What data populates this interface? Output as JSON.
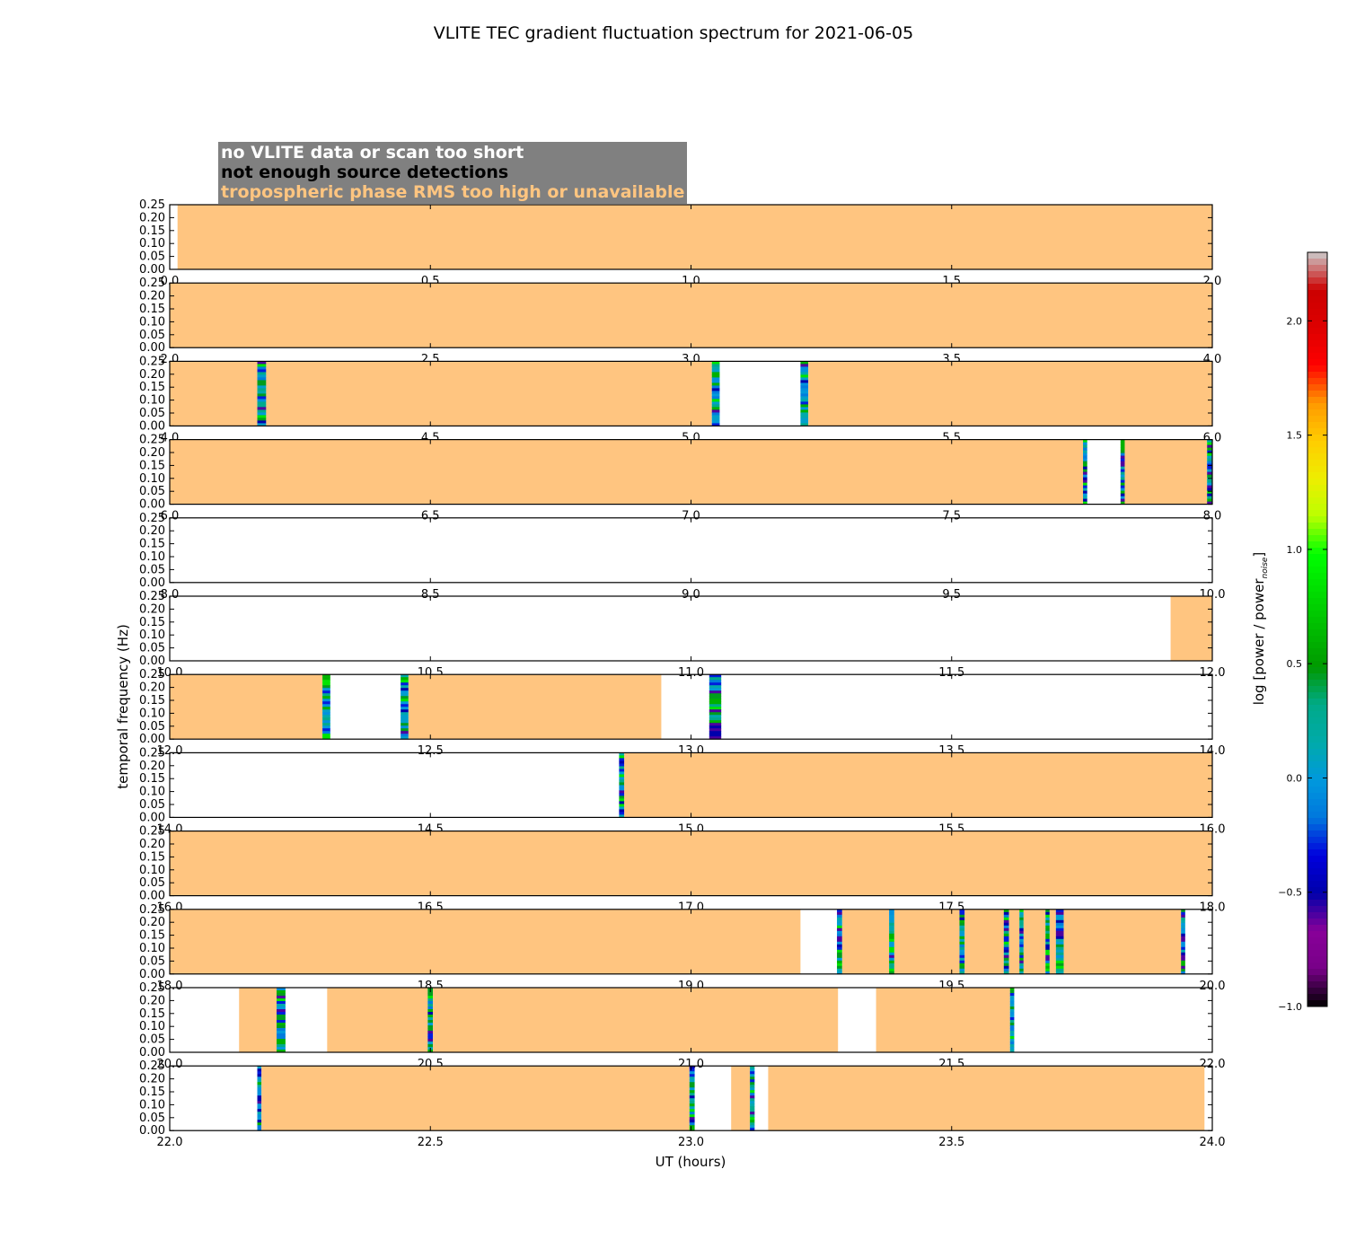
{
  "chart_data": {
    "type": "heatmap",
    "title": "VLITE TEC gradient fluctuation spectrum for 2021-06-05",
    "xlabel": "UT (hours)",
    "ylabel": "temporal frequency (Hz)",
    "colorbar": {
      "label": "log [power / power",
      "label_sub": "noise",
      "label_end": "]",
      "range": [
        -1.0,
        2.3
      ],
      "ticks": [
        "−1.0",
        "−0.5",
        "0.0",
        "0.5",
        "1.0",
        "1.5",
        "2.0"
      ],
      "tick_values": [
        -1.0,
        -0.5,
        0.0,
        0.5,
        1.0,
        1.5,
        2.0
      ],
      "colormap": "nipy_spectral"
    },
    "legend": [
      {
        "label": "no VLITE data or scan too short",
        "color": "#ffffff"
      },
      {
        "label": "not enough source detections",
        "color": "#000000"
      },
      {
        "label": "tropospheric phase RMS too high or unavailable",
        "color": "#ffc580"
      }
    ],
    "y_ticks": [
      "0.00",
      "0.05",
      "0.10",
      "0.15",
      "0.20",
      "0.25"
    ],
    "y_tick_values": [
      0.0,
      0.05,
      0.1,
      0.15,
      0.2,
      0.25
    ],
    "ylim": [
      0,
      0.25
    ],
    "panels": [
      {
        "xlim": [
          0,
          2
        ],
        "xticks": [
          "0.0",
          "0.5",
          "1.0",
          "1.5",
          "2.0"
        ],
        "segments": [
          [
            0.015,
            2.0,
            "rms"
          ]
        ]
      },
      {
        "xlim": [
          2,
          4
        ],
        "xticks": [
          "2.0",
          "2.5",
          "3.0",
          "3.5",
          "4.0"
        ],
        "segments": [
          [
            2.0,
            4.0,
            "rms"
          ]
        ]
      },
      {
        "xlim": [
          4,
          6
        ],
        "xticks": [
          "4.0",
          "4.5",
          "5.0",
          "5.5",
          "6.0"
        ],
        "segments": [
          [
            4.0,
            4.168,
            "rms"
          ],
          [
            4.168,
            4.185,
            "spec"
          ],
          [
            4.185,
            5.04,
            "rms"
          ],
          [
            5.04,
            5.055,
            "spec"
          ],
          [
            5.21,
            5.225,
            "spec"
          ],
          [
            5.225,
            6.0,
            "rms"
          ]
        ]
      },
      {
        "xlim": [
          6,
          8
        ],
        "xticks": [
          "6.0",
          "6.5",
          "7.0",
          "7.5",
          "8.0"
        ],
        "segments": [
          [
            6.0,
            7.752,
            "rms"
          ],
          [
            7.752,
            7.76,
            "spec"
          ],
          [
            7.824,
            7.832,
            "spec"
          ],
          [
            7.832,
            7.99,
            "rms"
          ],
          [
            7.99,
            8.0,
            "spec"
          ]
        ]
      },
      {
        "xlim": [
          8,
          10
        ],
        "xticks": [
          "8.0",
          "8.5",
          "9.0",
          "9.5",
          "10.0"
        ],
        "segments": []
      },
      {
        "xlim": [
          10,
          12
        ],
        "xticks": [
          "10.0",
          "10.5",
          "11.0",
          "11.5",
          "12.0"
        ],
        "segments": [
          [
            11.92,
            12.0,
            "rms"
          ]
        ]
      },
      {
        "xlim": [
          12,
          14
        ],
        "xticks": [
          "12.0",
          "12.5",
          "13.0",
          "13.5",
          "14.0"
        ],
        "segments": [
          [
            12.0,
            12.293,
            "rms"
          ],
          [
            12.293,
            12.308,
            "spec"
          ],
          [
            12.443,
            12.458,
            "spec"
          ],
          [
            12.458,
            12.943,
            "rms"
          ],
          [
            13.035,
            13.058,
            "spec"
          ]
        ]
      },
      {
        "xlim": [
          14,
          16
        ],
        "xticks": [
          "14.0",
          "14.5",
          "15.0",
          "15.5",
          "16.0"
        ],
        "segments": [
          [
            14.862,
            14.872,
            "spec"
          ],
          [
            14.872,
            16.0,
            "rms"
          ]
        ]
      },
      {
        "xlim": [
          16,
          18
        ],
        "xticks": [
          "16.0",
          "16.5",
          "17.0",
          "17.5",
          "18.0"
        ],
        "segments": [
          [
            16.0,
            18.0,
            "rms"
          ]
        ]
      },
      {
        "xlim": [
          18,
          20
        ],
        "xticks": [
          "18.0",
          "18.5",
          "19.0",
          "19.5",
          "20.0"
        ],
        "segments": [
          [
            18.0,
            19.21,
            "rms"
          ],
          [
            19.28,
            19.29,
            "spec"
          ],
          [
            19.29,
            19.38,
            "rms"
          ],
          [
            19.38,
            19.39,
            "spec"
          ],
          [
            19.39,
            19.515,
            "rms"
          ],
          [
            19.515,
            19.525,
            "spec"
          ],
          [
            19.525,
            19.6,
            "rms"
          ],
          [
            19.6,
            19.61,
            "spec"
          ],
          [
            19.61,
            19.63,
            "rms"
          ],
          [
            19.63,
            19.638,
            "spec"
          ],
          [
            19.638,
            19.68,
            "rms"
          ],
          [
            19.68,
            19.688,
            "spec"
          ],
          [
            19.688,
            19.7,
            "rms"
          ],
          [
            19.7,
            19.715,
            "spec"
          ],
          [
            19.715,
            19.94,
            "rms"
          ],
          [
            19.94,
            19.948,
            "spec"
          ]
        ]
      },
      {
        "xlim": [
          20,
          22
        ],
        "xticks": [
          "20.0",
          "20.5",
          "21.0",
          "21.5",
          "22.0"
        ],
        "segments": [
          [
            20.133,
            20.205,
            "rms"
          ],
          [
            20.205,
            20.222,
            "spec"
          ],
          [
            20.302,
            20.495,
            "rms"
          ],
          [
            20.495,
            20.505,
            "spec"
          ],
          [
            20.505,
            21.282,
            "rms"
          ],
          [
            21.355,
            21.612,
            "rms"
          ],
          [
            21.612,
            21.62,
            "spec"
          ]
        ]
      },
      {
        "xlim": [
          22,
          24
        ],
        "xticks": [
          "22.0",
          "22.5",
          "23.0",
          "23.5",
          "24.0"
        ],
        "segments": [
          [
            22.168,
            22.176,
            "spec"
          ],
          [
            22.176,
            22.997,
            "rms"
          ],
          [
            22.997,
            23.007,
            "spec"
          ],
          [
            23.077,
            23.113,
            "rms"
          ],
          [
            23.113,
            23.122,
            "spec"
          ],
          [
            23.148,
            23.985,
            "rms"
          ]
        ]
      }
    ]
  }
}
